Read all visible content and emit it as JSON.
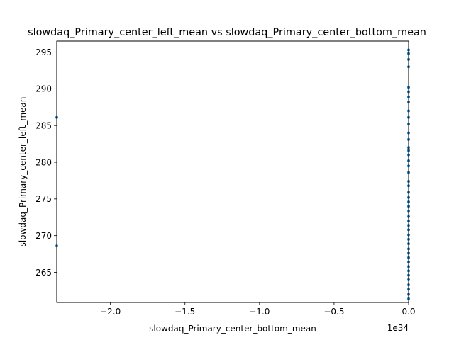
{
  "chart_data": {
    "type": "scatter",
    "title": "slowdaq_Primary_center_left_mean vs slowdaq_Primary_center_bottom_mean",
    "xlabel": "slowdaq_Primary_center_bottom_mean",
    "ylabel": "slowdaq_Primary_center_left_mean",
    "x_offset_label": "1e34",
    "xlim": [
      -2.36,
      0.0
    ],
    "ylim": [
      260.9,
      296.5
    ],
    "x_ticks": [
      {
        "value": -2.0,
        "label": "−2.0"
      },
      {
        "value": -1.5,
        "label": "−1.5"
      },
      {
        "value": -1.0,
        "label": "−1.0"
      },
      {
        "value": -0.5,
        "label": "−0.5"
      },
      {
        "value": 0.0,
        "label": "0.0"
      }
    ],
    "y_ticks": [
      {
        "value": 265,
        "label": "265"
      },
      {
        "value": 270,
        "label": "270"
      },
      {
        "value": 275,
        "label": "275"
      },
      {
        "value": 280,
        "label": "280"
      },
      {
        "value": 285,
        "label": "285"
      },
      {
        "value": 290,
        "label": "290"
      },
      {
        "value": 295,
        "label": "295"
      }
    ],
    "grid": false,
    "legend": "none",
    "marker_color": "#1f77b4",
    "series": [
      {
        "points": [
          [
            -2.36,
            286.1
          ],
          [
            -2.36,
            268.6
          ],
          [
            0,
            295.3
          ],
          [
            0,
            294.8
          ],
          [
            0,
            294.0
          ],
          [
            0,
            293.0
          ],
          [
            0,
            290.2
          ],
          [
            0,
            289.6
          ],
          [
            0,
            288.9
          ],
          [
            0,
            288.2
          ],
          [
            0,
            287.0
          ],
          [
            0,
            286.1
          ],
          [
            0,
            285.2
          ],
          [
            0,
            284.0
          ],
          [
            0,
            283.1
          ],
          [
            0,
            282.0
          ],
          [
            0,
            281.6
          ],
          [
            0,
            281.0
          ],
          [
            0,
            280.2
          ],
          [
            0,
            279.5
          ],
          [
            0,
            278.6
          ],
          [
            0,
            277.4
          ],
          [
            0,
            276.8
          ],
          [
            0,
            275.9
          ],
          [
            0,
            275.2
          ],
          [
            0,
            274.6
          ],
          [
            0,
            274.0
          ],
          [
            0,
            273.3
          ],
          [
            0,
            272.6
          ],
          [
            0,
            272.0
          ],
          [
            0,
            271.4
          ],
          [
            0,
            270.8
          ],
          [
            0,
            270.1
          ],
          [
            0,
            269.5
          ],
          [
            0,
            268.9
          ],
          [
            0,
            268.2
          ],
          [
            0,
            267.6
          ],
          [
            0,
            267.0
          ],
          [
            0,
            266.4
          ],
          [
            0,
            265.8
          ],
          [
            0,
            265.2
          ],
          [
            0,
            264.6
          ],
          [
            0,
            264.0
          ],
          [
            0,
            263.3
          ],
          [
            0,
            262.7
          ],
          [
            0,
            262.0
          ],
          [
            0,
            261.4
          ]
        ]
      }
    ]
  }
}
